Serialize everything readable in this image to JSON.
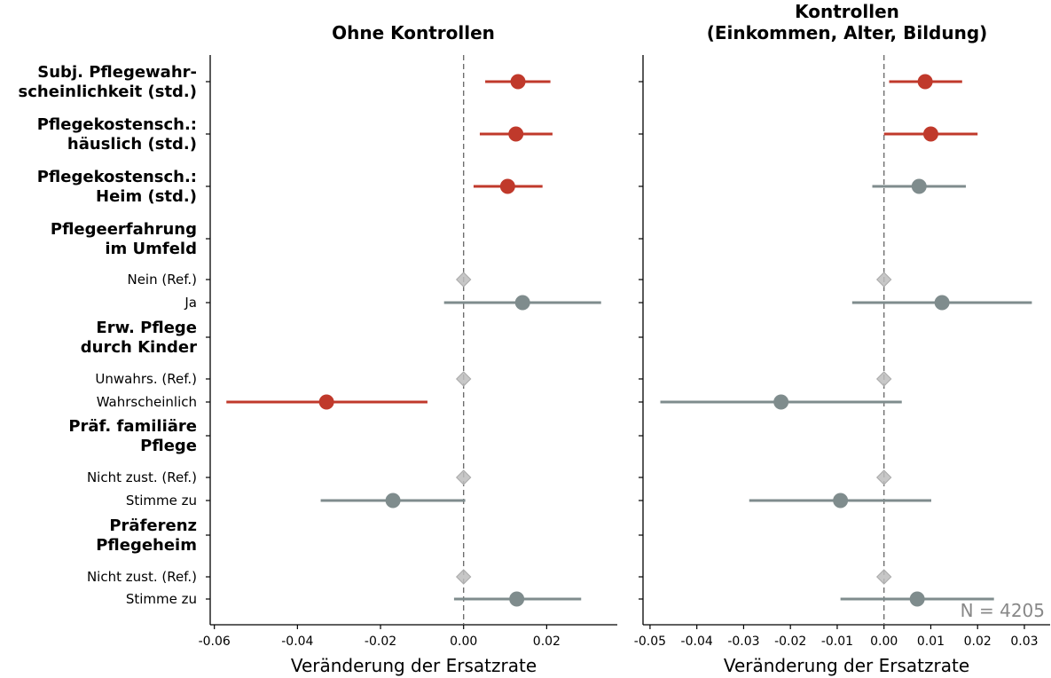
{
  "colors": {
    "significant": "#c0392b",
    "non_significant": "#7f8c8d",
    "reference": "#bdbdbd"
  },
  "n_label": "N = 4205",
  "rows": [
    {
      "label": [
        "Subj. Pflegewahr-",
        "scheinlichkeit (std.)"
      ],
      "bold": true
    },
    {
      "label": [
        "Pflegekostensch.:",
        "häuslich (std.)"
      ],
      "bold": true
    },
    {
      "label": [
        "Pflegekostensch.:",
        "Heim (std.)"
      ],
      "bold": true
    },
    {
      "label": [
        "Pflegeerfahrung",
        "im Umfeld"
      ],
      "bold": true
    },
    {
      "label": [
        "Nein (Ref.)"
      ],
      "bold": false
    },
    {
      "label": [
        "Ja"
      ],
      "bold": false
    },
    {
      "label": [
        "Erw. Pflege",
        "durch Kinder"
      ],
      "bold": true
    },
    {
      "label": [
        "Unwahrs. (Ref.)"
      ],
      "bold": false
    },
    {
      "label": [
        "Wahrscheinlich"
      ],
      "bold": false
    },
    {
      "label": [
        "Präf. familiäre",
        "Pflege"
      ],
      "bold": true
    },
    {
      "label": [
        "Nicht zust. (Ref.)"
      ],
      "bold": false
    },
    {
      "label": [
        "Stimme zu"
      ],
      "bold": false
    },
    {
      "label": [
        "Präferenz",
        "Pflegeheim"
      ],
      "bold": true
    },
    {
      "label": [
        "Nicht zust. (Ref.)"
      ],
      "bold": false
    },
    {
      "label": [
        "Stimme zu"
      ],
      "bold": false
    }
  ],
  "chart_data": [
    {
      "type": "scatter",
      "title": [
        "Ohne Kontrollen"
      ],
      "xlabel": "Veränderung der Ersatzrate",
      "xlim": [
        -0.061,
        0.037
      ],
      "xticks": [
        -0.06,
        -0.04,
        -0.02,
        0.0,
        0.02
      ],
      "xtick_labels": [
        "-0.06",
        "-0.04",
        "-0.02",
        "0.00",
        "0.02"
      ],
      "reference_line": 0,
      "points": [
        {
          "row": 0,
          "est": 0.0131,
          "lo": 0.0052,
          "hi": 0.0209,
          "status": "significant"
        },
        {
          "row": 1,
          "est": 0.0126,
          "lo": 0.0039,
          "hi": 0.0214,
          "status": "significant"
        },
        {
          "row": 2,
          "est": 0.0106,
          "lo": 0.0024,
          "hi": 0.019,
          "status": "significant"
        },
        {
          "row": 4,
          "est": 0.0,
          "status": "reference"
        },
        {
          "row": 5,
          "est": 0.0142,
          "lo": -0.0047,
          "hi": 0.0331,
          "status": "non_significant"
        },
        {
          "row": 7,
          "est": 0.0,
          "status": "reference"
        },
        {
          "row": 8,
          "est": -0.033,
          "lo": -0.0571,
          "hi": -0.0087,
          "status": "significant"
        },
        {
          "row": 10,
          "est": 0.0,
          "status": "reference"
        },
        {
          "row": 11,
          "est": -0.017,
          "lo": -0.0344,
          "hi": 0.0004,
          "status": "non_significant"
        },
        {
          "row": 13,
          "est": 0.0,
          "status": "reference"
        },
        {
          "row": 14,
          "est": 0.0128,
          "lo": -0.0023,
          "hi": 0.0283,
          "status": "non_significant"
        }
      ]
    },
    {
      "type": "scatter",
      "title": [
        "Kontrollen",
        "(Einkommen, Alter, Bildung)"
      ],
      "xlabel": "Veränderung der Ersatzrate",
      "xlim": [
        -0.0515,
        0.0355
      ],
      "xticks": [
        -0.05,
        -0.04,
        -0.03,
        -0.02,
        -0.01,
        0.0,
        0.01,
        0.02,
        0.03
      ],
      "xtick_labels": [
        "-0.05",
        "-0.04",
        "-0.03",
        "-0.02",
        "-0.01",
        "0.00",
        "0.01",
        "0.02",
        "0.03"
      ],
      "reference_line": 0,
      "points": [
        {
          "row": 0,
          "est": 0.0088,
          "lo": 0.0011,
          "hi": 0.0167,
          "status": "significant"
        },
        {
          "row": 1,
          "est": 0.01,
          "lo": 0.0,
          "hi": 0.02,
          "status": "significant"
        },
        {
          "row": 2,
          "est": 0.0075,
          "lo": -0.0025,
          "hi": 0.0175,
          "status": "non_significant"
        },
        {
          "row": 4,
          "est": 0.0,
          "status": "reference"
        },
        {
          "row": 5,
          "est": 0.0124,
          "lo": -0.0068,
          "hi": 0.0316,
          "status": "non_significant"
        },
        {
          "row": 7,
          "est": 0.0,
          "status": "reference"
        },
        {
          "row": 8,
          "est": -0.022,
          "lo": -0.0478,
          "hi": 0.0038,
          "status": "non_significant"
        },
        {
          "row": 10,
          "est": 0.0,
          "status": "reference"
        },
        {
          "row": 11,
          "est": -0.0093,
          "lo": -0.0288,
          "hi": 0.0101,
          "status": "non_significant"
        },
        {
          "row": 13,
          "est": 0.0,
          "status": "reference"
        },
        {
          "row": 14,
          "est": 0.0071,
          "lo": -0.0093,
          "hi": 0.0235,
          "status": "non_significant"
        }
      ]
    }
  ]
}
